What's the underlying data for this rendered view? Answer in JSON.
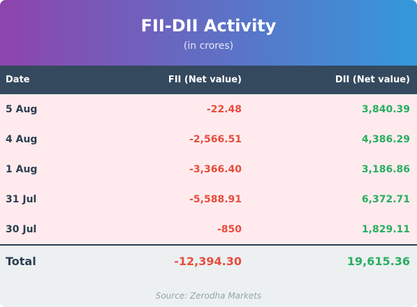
{
  "header": {
    "title": "FII-DII Activity",
    "subtitle": "(in crores)"
  },
  "table": {
    "columns": [
      "Date",
      "FII (Net value)",
      "DII (Net value)"
    ],
    "rows": [
      {
        "date": "5 Aug",
        "fii": "-22.48",
        "dii": "3,840.39"
      },
      {
        "date": "4 Aug",
        "fii": "-2,566.51",
        "dii": "4,386.29"
      },
      {
        "date": "1 Aug",
        "fii": "-3,366.40",
        "dii": "3,186.86"
      },
      {
        "date": "31 Jul",
        "fii": "-5,588.91",
        "dii": "6,372.71"
      },
      {
        "date": "30 Jul",
        "fii": "-850",
        "dii": "1,829.11"
      }
    ],
    "total": {
      "label": "Total",
      "fii": "-12,394.30",
      "dii": "19,615.36"
    }
  },
  "source": "Source: Zerodha Markets",
  "colors": {
    "header_gradient_start": "#8e44ad",
    "header_gradient_end": "#3498db",
    "table_header_bg": "#34495e",
    "negative": "#e74c3c",
    "positive": "#27ae60",
    "row_bg": "#ffebee"
  }
}
